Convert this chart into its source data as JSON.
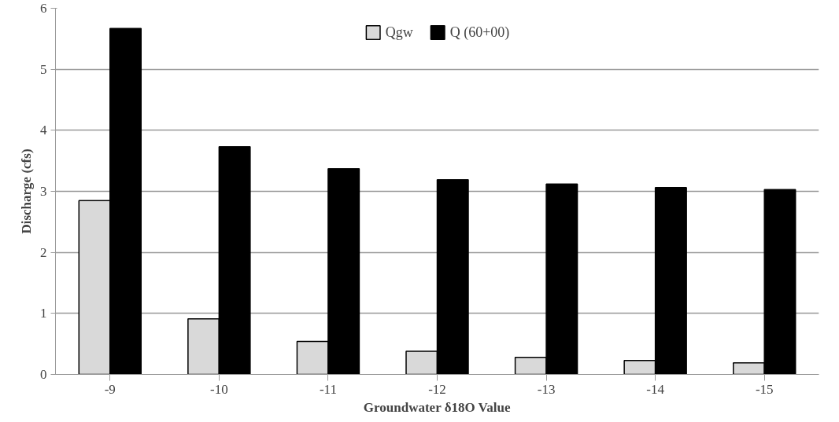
{
  "chart_data": {
    "type": "bar",
    "xlabel": "Groundwater δ18O Value",
    "ylabel": "Discharge (cfs)",
    "categories": [
      "-9",
      "-10",
      "-11",
      "-12",
      "-13",
      "-14",
      "-15"
    ],
    "series": [
      {
        "name": "Qgw",
        "color": "#d9d9d9",
        "values": [
          2.85,
          0.91,
          0.54,
          0.38,
          0.28,
          0.23,
          0.19
        ]
      },
      {
        "name": "Q (60+00)",
        "color": "#000000",
        "values": [
          5.67,
          3.73,
          3.37,
          3.19,
          3.12,
          3.06,
          3.03
        ]
      }
    ],
    "ylim": [
      0,
      6
    ],
    "yticks": [
      0,
      1,
      2,
      3,
      4,
      5,
      6
    ],
    "grid": "y",
    "legend": "top"
  }
}
